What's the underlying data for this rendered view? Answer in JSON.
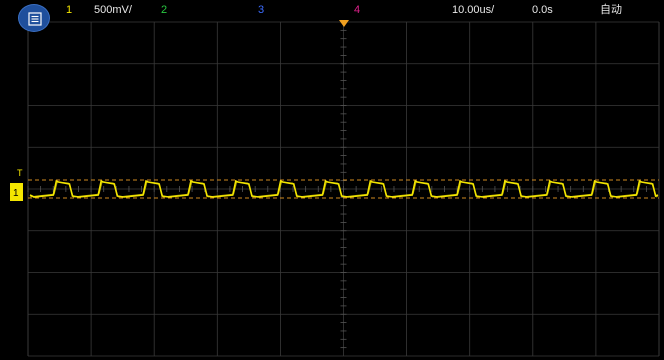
{
  "header": {
    "menu_icon": "menu-icon",
    "ch1_label": "1",
    "ch1_scale": "500mV/",
    "ch2_label": "2",
    "ch3_label": "3",
    "ch4_label": "4",
    "timebase": "10.00us/",
    "delay": "0.0s",
    "trigger_mode": "自动"
  },
  "markers": {
    "trigger_label": "T",
    "ground_label": "1"
  },
  "colors": {
    "ch1": "#f4e600",
    "ch2": "#28c840",
    "ch3": "#3c6cff",
    "ch4": "#e0208c",
    "trigger_marker": "#f0a020",
    "grid": "#3a3a3a",
    "cursor_lines": "#d08a20",
    "text": "#e8e8e8"
  },
  "waveform": {
    "channel": "1",
    "shape": "square-ish pulse train with slow rise",
    "cycles_visible": 14
  }
}
